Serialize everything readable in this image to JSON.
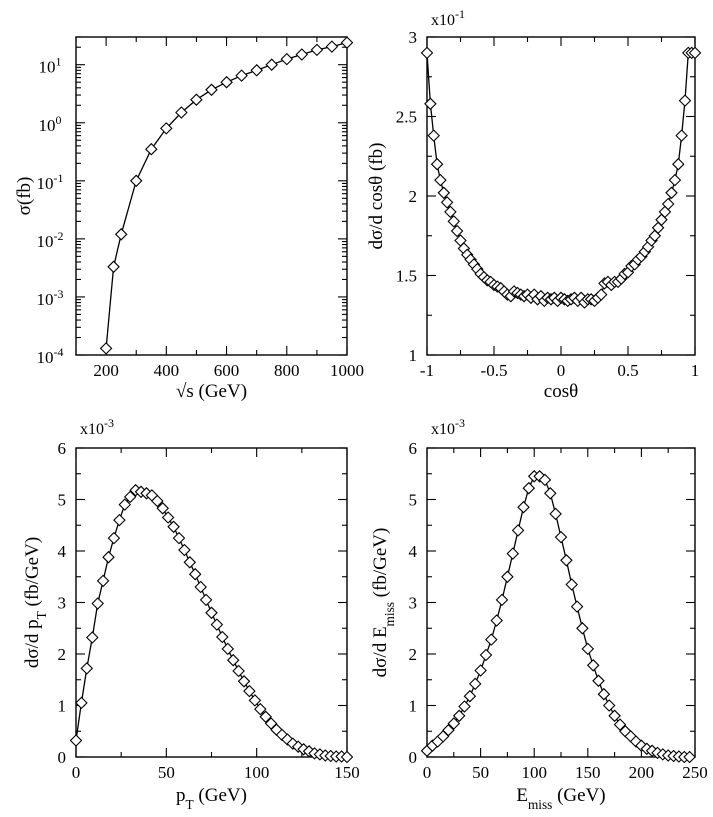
{
  "chart_data": [
    {
      "type": "line",
      "xlabel": "√s (GeV)",
      "ylabel": "σ(fb)",
      "xlim": [
        100,
        1000
      ],
      "ylim": [
        0.0001,
        30
      ],
      "yscale": "log",
      "xticks": [
        200,
        400,
        600,
        800,
        1000
      ],
      "xticklabels": [
        "200",
        "400",
        "600",
        "800",
        "1000"
      ],
      "yticks": [
        0.0001,
        0.001,
        0.01,
        0.1,
        1,
        10
      ],
      "yticklabels": [
        {
          "base": "10",
          "exp": "-4"
        },
        {
          "base": "10",
          "exp": "-3"
        },
        {
          "base": "10",
          "exp": "-2"
        },
        {
          "base": "10",
          "exp": "-1"
        },
        {
          "base": "10",
          "exp": "0"
        },
        {
          "base": "10",
          "exp": "1"
        }
      ],
      "multiplier": null,
      "marker": "diamond",
      "series": [
        {
          "x": [
            200,
            225,
            250,
            300,
            350,
            400,
            450,
            500,
            550,
            600,
            650,
            700,
            750,
            800,
            850,
            900,
            950,
            1000
          ],
          "y": [
            0.00013,
            0.0033,
            0.012,
            0.1,
            0.35,
            0.8,
            1.5,
            2.5,
            3.7,
            5.0,
            6.5,
            8.0,
            10.0,
            12.5,
            15.0,
            18.0,
            20.5,
            24.0
          ]
        }
      ]
    },
    {
      "type": "line",
      "xlabel": "cosθ",
      "ylabel": "dσ/d cosθ (fb)",
      "xlim": [
        -1,
        1
      ],
      "ylim": [
        1,
        3
      ],
      "yscale": "linear",
      "xticks": [
        -1,
        -0.5,
        0,
        0.5,
        1
      ],
      "xticklabels": [
        "-1",
        "-0.5",
        "0",
        "0.5",
        "1"
      ],
      "yticks": [
        1,
        1.5,
        2,
        2.5,
        3
      ],
      "yticklabels": [
        "1",
        "1.5",
        "2",
        "2.5",
        "3"
      ],
      "multiplier": {
        "base": "x10",
        "exp": "-1"
      },
      "marker": "diamond",
      "series": [
        {
          "x": [
            -1.0,
            -0.975,
            -0.95,
            -0.925,
            -0.9,
            -0.875,
            -0.85,
            -0.825,
            -0.8,
            -0.775,
            -0.75,
            -0.725,
            -0.7,
            -0.675,
            -0.65,
            -0.625,
            -0.6,
            -0.575,
            -0.55,
            -0.525,
            -0.5,
            -0.475,
            -0.45,
            -0.425,
            -0.4,
            -0.375,
            -0.35,
            -0.325,
            -0.3,
            -0.275,
            -0.25,
            -0.225,
            -0.2,
            -0.175,
            -0.15,
            -0.125,
            -0.1,
            -0.075,
            -0.05,
            -0.025,
            0.0,
            0.025,
            0.05,
            0.075,
            0.1,
            0.125,
            0.15,
            0.175,
            0.2,
            0.225,
            0.25,
            0.275,
            0.3,
            0.325,
            0.35,
            0.375,
            0.4,
            0.425,
            0.45,
            0.475,
            0.5,
            0.525,
            0.55,
            0.575,
            0.6,
            0.625,
            0.65,
            0.675,
            0.7,
            0.725,
            0.75,
            0.775,
            0.8,
            0.825,
            0.85,
            0.875,
            0.9,
            0.925,
            0.95,
            0.975,
            1.0
          ],
          "y": [
            2.9,
            2.58,
            2.38,
            2.2,
            2.1,
            2.02,
            1.96,
            1.9,
            1.84,
            1.78,
            1.72,
            1.67,
            1.63,
            1.6,
            1.57,
            1.54,
            1.51,
            1.49,
            1.47,
            1.46,
            1.44,
            1.43,
            1.42,
            1.4,
            1.38,
            1.37,
            1.4,
            1.39,
            1.38,
            1.37,
            1.38,
            1.36,
            1.38,
            1.35,
            1.37,
            1.34,
            1.36,
            1.35,
            1.36,
            1.34,
            1.36,
            1.35,
            1.34,
            1.35,
            1.36,
            1.34,
            1.36,
            1.33,
            1.35,
            1.35,
            1.34,
            1.36,
            1.38,
            1.45,
            1.46,
            1.44,
            1.46,
            1.46,
            1.48,
            1.51,
            1.52,
            1.56,
            1.57,
            1.6,
            1.62,
            1.65,
            1.68,
            1.72,
            1.75,
            1.8,
            1.85,
            1.9,
            1.95,
            2.02,
            2.1,
            2.2,
            2.38,
            2.6,
            2.9,
            2.9,
            2.9
          ]
        }
      ]
    },
    {
      "type": "line",
      "xlabel": "p_T (GeV)",
      "ylabel": "dσ/d p_T (fb/GeV)",
      "xlim": [
        0,
        150
      ],
      "ylim": [
        0,
        6
      ],
      "yscale": "linear",
      "xticks": [
        0,
        50,
        100,
        150
      ],
      "xticklabels": [
        "0",
        "50",
        "100",
        "150"
      ],
      "yticks": [
        0,
        1,
        2,
        3,
        4,
        5,
        6
      ],
      "yticklabels": [
        "0",
        "1",
        "2",
        "3",
        "4",
        "5",
        "6"
      ],
      "multiplier": {
        "base": "x10",
        "exp": "-3"
      },
      "marker": "diamond",
      "series": [
        {
          "x": [
            0,
            3,
            6,
            9,
            12,
            15,
            18,
            21,
            24,
            27,
            30,
            33,
            36,
            39,
            42,
            45,
            48,
            51,
            54,
            57,
            60,
            63,
            66,
            69,
            72,
            75,
            78,
            81,
            84,
            87,
            90,
            93,
            96,
            99,
            102,
            105,
            108,
            111,
            114,
            117,
            120,
            123,
            126,
            129,
            132,
            135,
            138,
            141,
            144,
            147,
            150
          ],
          "y": [
            0.32,
            1.05,
            1.72,
            2.32,
            2.98,
            3.42,
            3.88,
            4.25,
            4.6,
            4.9,
            5.05,
            5.18,
            5.15,
            5.12,
            5.08,
            4.97,
            4.83,
            4.65,
            4.47,
            4.25,
            4.02,
            3.78,
            3.55,
            3.3,
            3.05,
            2.8,
            2.57,
            2.33,
            2.1,
            1.88,
            1.67,
            1.47,
            1.28,
            1.1,
            0.93,
            0.78,
            0.65,
            0.53,
            0.43,
            0.34,
            0.26,
            0.2,
            0.15,
            0.11,
            0.07,
            0.05,
            0.03,
            0.02,
            0.01,
            0.01,
            0.0
          ]
        }
      ]
    },
    {
      "type": "line",
      "xlabel": "E_miss (GeV)",
      "ylabel": "dσ/d E_miss (fb/GeV)",
      "xlim": [
        0,
        250
      ],
      "ylim": [
        0,
        6
      ],
      "yscale": "linear",
      "xticks": [
        0,
        50,
        100,
        150,
        200,
        250
      ],
      "xticklabels": [
        "0",
        "50",
        "100",
        "150",
        "200",
        "250"
      ],
      "yticks": [
        0,
        1,
        2,
        3,
        4,
        5,
        6
      ],
      "yticklabels": [
        "0",
        "1",
        "2",
        "3",
        "4",
        "5",
        "6"
      ],
      "multiplier": {
        "base": "x10",
        "exp": "-3"
      },
      "marker": "diamond",
      "series": [
        {
          "x": [
            0,
            5,
            10,
            15,
            20,
            25,
            30,
            35,
            40,
            45,
            50,
            55,
            60,
            65,
            70,
            75,
            80,
            85,
            90,
            95,
            100,
            105,
            110,
            115,
            120,
            125,
            130,
            135,
            140,
            145,
            150,
            155,
            160,
            165,
            170,
            175,
            180,
            185,
            190,
            195,
            200,
            205,
            210,
            215,
            220,
            225,
            230,
            235,
            240,
            245
          ],
          "y": [
            0.12,
            0.22,
            0.3,
            0.4,
            0.52,
            0.65,
            0.8,
            0.98,
            1.18,
            1.42,
            1.68,
            1.98,
            2.28,
            2.65,
            3.05,
            3.5,
            3.95,
            4.4,
            4.85,
            5.22,
            5.45,
            5.45,
            5.38,
            5.12,
            4.72,
            4.27,
            3.82,
            3.35,
            2.92,
            2.5,
            2.1,
            1.78,
            1.48,
            1.22,
            1.0,
            0.8,
            0.63,
            0.5,
            0.4,
            0.3,
            0.22,
            0.16,
            0.12,
            0.08,
            0.05,
            0.03,
            0.02,
            0.01,
            0.0,
            0.0
          ]
        }
      ]
    }
  ]
}
